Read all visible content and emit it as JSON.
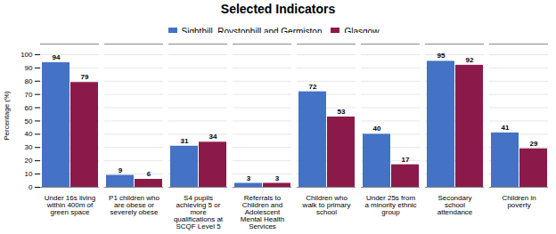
{
  "chart_data": {
    "type": "bar",
    "title": "Selected Indicators",
    "ylabel": "Percentage (%)",
    "categories": [
      "Under 16s living\nwithin 400m of\ngreen space",
      "P1 children who\nare obese or\nseverely obese",
      "S4 pupils\nachieving 5 or\nmore\nqualifications at\nSCQF Level 5",
      "Referrals to\nChildren and\nAdolescent\nMental Health\nServices",
      "Children who\nwalk to primary\nschool",
      "Under 25s from\na minority ethnic\ngroup",
      "Secondary\nschool\nattendance",
      "Children in\npoverty"
    ],
    "series": [
      {
        "name": "Sighthill, Roystonhill and Germiston",
        "color": "#4472C4",
        "values": [
          94,
          9,
          31,
          3,
          72,
          40,
          95,
          41
        ]
      },
      {
        "name": "Glasgow",
        "color": "#8B1A4A",
        "values": [
          79,
          6,
          34,
          3,
          53,
          17,
          92,
          29
        ]
      }
    ],
    "ylim": [
      0,
      108
    ],
    "yticks": [
      0,
      10,
      20,
      30,
      40,
      50,
      60,
      70,
      80,
      90,
      100
    ],
    "grid": true,
    "legend": "top",
    "data_labels": true
  }
}
